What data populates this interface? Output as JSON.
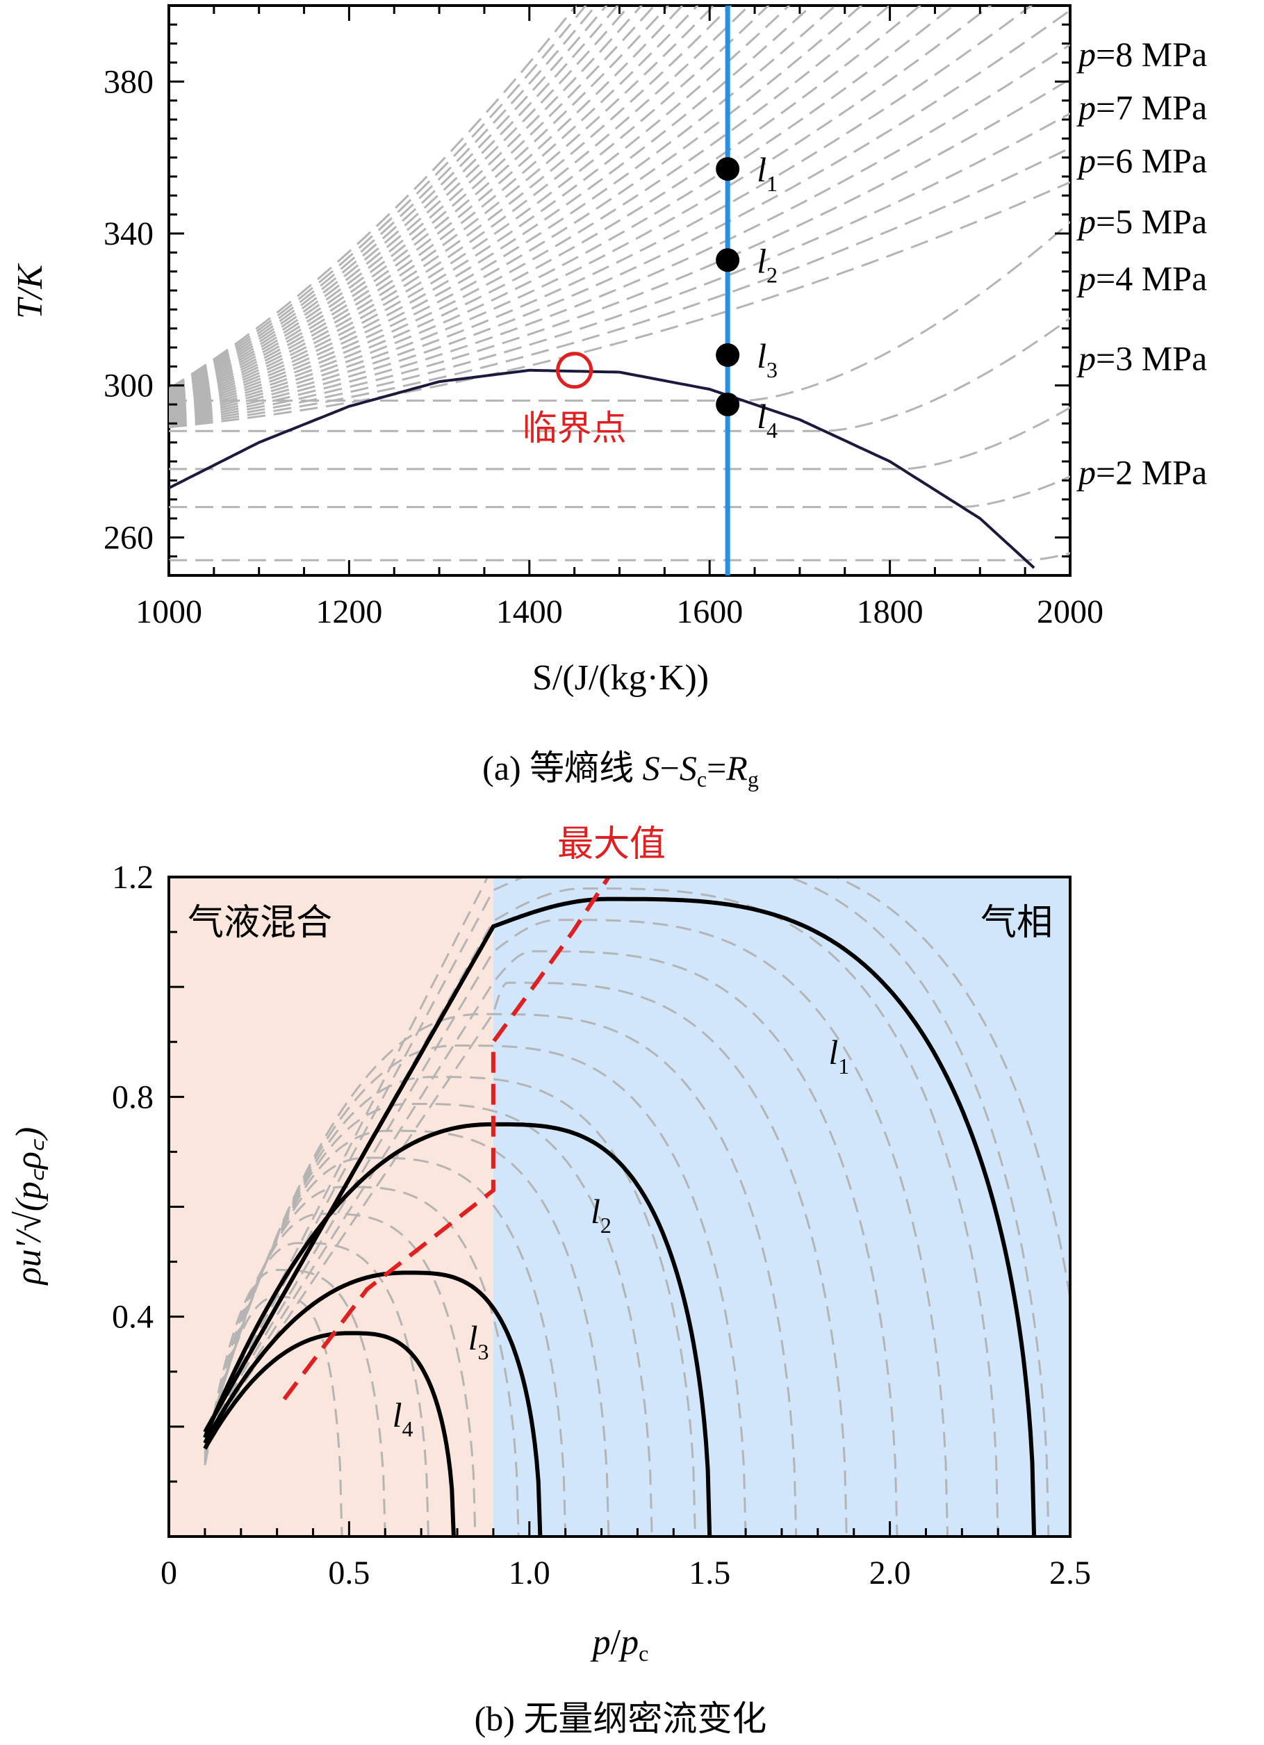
{
  "chart_data": [
    {
      "type": "line",
      "ylabel": "T/K",
      "xlabel": "S/(J/(kg·K))",
      "caption": {
        "prefix": "(a) 等熵线 ",
        "formula_S": "S",
        "formula_minus": "−",
        "formula_Sc": "S",
        "formula_c": "c",
        "formula_eq": "=",
        "formula_R": "R",
        "formula_g": "g"
      },
      "xlim": [
        1000,
        2000
      ],
      "ylim": [
        250,
        400
      ],
      "xticks": [
        1000,
        1200,
        1400,
        1600,
        1800,
        2000
      ],
      "yticks": [
        260,
        300,
        340,
        380
      ],
      "critical_point": {
        "label": "临界点",
        "x": 1450,
        "y": 304,
        "color": "#e02020"
      },
      "saturation_dome": {
        "x": [
          1000,
          1100,
          1200,
          1300,
          1400,
          1500,
          1600,
          1700,
          1800,
          1900,
          1960
        ],
        "y": [
          273,
          285,
          294.5,
          301,
          304,
          303.5,
          299,
          291,
          280,
          265,
          252
        ],
        "color": "#1c1a3c"
      },
      "isentrope": {
        "x": 1620,
        "color": "#2a8fe0"
      },
      "state_points": [
        {
          "label": "l",
          "sub": "1",
          "x": 1620,
          "y": 357
        },
        {
          "label": "l",
          "sub": "2",
          "x": 1620,
          "y": 333
        },
        {
          "label": "l",
          "sub": "3",
          "x": 1620,
          "y": 308
        },
        {
          "label": "l",
          "sub": "4",
          "x": 1620,
          "y": 295
        }
      ],
      "pressure_labels": [
        {
          "text": "p",
          "rest": "=8 MPa",
          "y": 387
        },
        {
          "text": "p",
          "rest": "=7 MPa",
          "y": 373
        },
        {
          "text": "p",
          "rest": "=6 MPa",
          "y": 359
        },
        {
          "text": "p",
          "rest": "=5 MPa",
          "y": 343
        },
        {
          "text": "p",
          "rest": "=4 MPa",
          "y": 328
        },
        {
          "text": "p",
          "rest": "=3 MPa",
          "y": 307
        },
        {
          "text": "p",
          "rest": "=2 MPa",
          "y": 277
        }
      ],
      "isobar_color": "#b4b4b4"
    },
    {
      "type": "line",
      "xlabel_p": "p",
      "xlabel_slash": "/",
      "xlabel_pc": "p",
      "xlabel_c": "c",
      "ylabel": "ρu'/√(p꜀ρ꜀)",
      "caption": "(b) 无量纲密流变化",
      "xlim": [
        0,
        2.5
      ],
      "ylim": [
        0,
        1.2
      ],
      "xticks": [
        "0",
        "0.5",
        "1.0",
        "1.5",
        "2.0",
        "2.5"
      ],
      "xtick_values": [
        0,
        0.5,
        1.0,
        1.5,
        2.0,
        2.5
      ],
      "yticks": [
        "0.4",
        "0.8",
        "1.2"
      ],
      "ytick_values": [
        0.4,
        0.8,
        1.2
      ],
      "region_labels": {
        "left": "气液混合",
        "right": "气相"
      },
      "region_boundary_x": 0.9,
      "region_colors": {
        "left": "#fbe6dd",
        "right": "#d2e6fb"
      },
      "max_label": "最大值",
      "max_line_color": "#e02020",
      "max_line": {
        "x": [
          0.32,
          0.55,
          0.9,
          0.9,
          1.0,
          1.12,
          1.22
        ],
        "y": [
          0.25,
          0.45,
          0.63,
          0.9,
          0.99,
          1.1,
          1.2
        ]
      },
      "series": [
        {
          "label": "l",
          "sub": "1",
          "peak_x": 1.22,
          "peak_y": 1.16,
          "end_x": 2.4,
          "mix_end_y": 1.11,
          "label_x": 1.83,
          "label_y": 0.86
        },
        {
          "label": "l",
          "sub": "2",
          "peak_x": 0.9,
          "peak_y": 0.75,
          "end_x": 1.5,
          "mix_end_y": 0.75,
          "label_x": 1.17,
          "label_y": 0.57
        },
        {
          "label": "l",
          "sub": "3",
          "peak_x": 0.66,
          "peak_y": 0.48,
          "end_x": 1.03,
          "mix_end_y": 0.48,
          "label_x": 0.83,
          "label_y": 0.34
        },
        {
          "label": "l",
          "sub": "4",
          "peak_x": 0.5,
          "peak_y": 0.37,
          "end_x": 0.79,
          "mix_end_y": 0.37,
          "label_x": 0.62,
          "label_y": 0.2
        }
      ],
      "dashed_end_x": [
        0.48,
        0.6,
        0.72,
        0.85,
        0.97,
        1.1,
        1.22,
        1.34,
        1.46,
        1.6,
        1.74,
        1.88,
        2.02,
        2.16,
        2.3,
        2.44,
        2.55
      ],
      "dashed_color": "#b4b4b4"
    }
  ]
}
